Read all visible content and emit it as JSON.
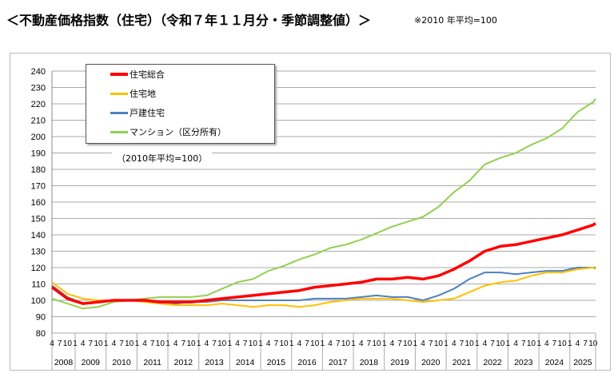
{
  "header": {
    "title": "＜不動産価格指数（住宅）（令和７年１１月分・季節調整値）＞",
    "note": "※2010 年平均=100"
  },
  "chart_data": {
    "type": "line",
    "unit_note": "（2010年平均=100）",
    "ylim": [
      80,
      240
    ],
    "yticks": [
      80,
      90,
      100,
      110,
      120,
      130,
      140,
      150,
      160,
      170,
      180,
      190,
      200,
      210,
      220,
      230,
      240
    ],
    "grid": true,
    "legend_position": "top-left",
    "month_tick_labels": [
      "4",
      "7",
      "10",
      "1"
    ],
    "years": [
      "2008",
      "2009",
      "2010",
      "2011",
      "2012",
      "2013",
      "2014",
      "2015",
      "2016",
      "2017",
      "2018",
      "2019",
      "2020",
      "2021",
      "2022",
      "2023",
      "2024",
      "2025"
    ],
    "x": [
      "2008-04",
      "2008-10",
      "2009-04",
      "2009-10",
      "2010-04",
      "2010-10",
      "2011-04",
      "2011-10",
      "2012-04",
      "2012-10",
      "2013-04",
      "2013-10",
      "2014-04",
      "2014-10",
      "2015-04",
      "2015-10",
      "2016-04",
      "2016-10",
      "2017-04",
      "2017-10",
      "2018-04",
      "2018-10",
      "2019-04",
      "2019-10",
      "2020-04",
      "2020-10",
      "2021-04",
      "2021-10",
      "2022-04",
      "2022-10",
      "2023-04",
      "2023-10",
      "2024-04",
      "2024-10",
      "2025-04",
      "2025-10",
      "2025-11"
    ],
    "series": [
      {
        "name": "住宅総合",
        "color": "#ff0000",
        "values": [
          108,
          101,
          98,
          99,
          100,
          100,
          100,
          99,
          99,
          99,
          100,
          101,
          102,
          103,
          104,
          105,
          106,
          108,
          109,
          110,
          111,
          113,
          113,
          114,
          113,
          115,
          119,
          124,
          130,
          133,
          134,
          136,
          138,
          140,
          143,
          146,
          147
        ]
      },
      {
        "name": "住宅地",
        "color": "#ffc000",
        "values": [
          111,
          104,
          101,
          100,
          100,
          100,
          99,
          98,
          97,
          97,
          97,
          98,
          97,
          96,
          97,
          97,
          96,
          97,
          99,
          100,
          101,
          101,
          101,
          100,
          99,
          100,
          101,
          105,
          109,
          111,
          112,
          115,
          117,
          117,
          119,
          120,
          119
        ]
      },
      {
        "name": "戸建住宅",
        "color": "#4f81bd",
        "values": [
          109,
          102,
          98,
          99,
          100,
          100,
          100,
          99,
          98,
          99,
          99,
          100,
          100,
          100,
          100,
          100,
          100,
          101,
          101,
          101,
          102,
          103,
          102,
          102,
          100,
          103,
          107,
          113,
          117,
          117,
          116,
          117,
          118,
          118,
          120,
          120,
          120
        ]
      },
      {
        "name": "マンション（区分所有）",
        "color": "#92d050",
        "values": [
          101,
          98,
          95,
          96,
          99,
          100,
          101,
          102,
          102,
          102,
          103,
          107,
          111,
          113,
          118,
          121,
          125,
          128,
          132,
          134,
          137,
          141,
          145,
          148,
          151,
          157,
          166,
          173,
          183,
          187,
          190,
          195,
          199,
          205,
          215,
          221,
          223
        ]
      }
    ]
  }
}
